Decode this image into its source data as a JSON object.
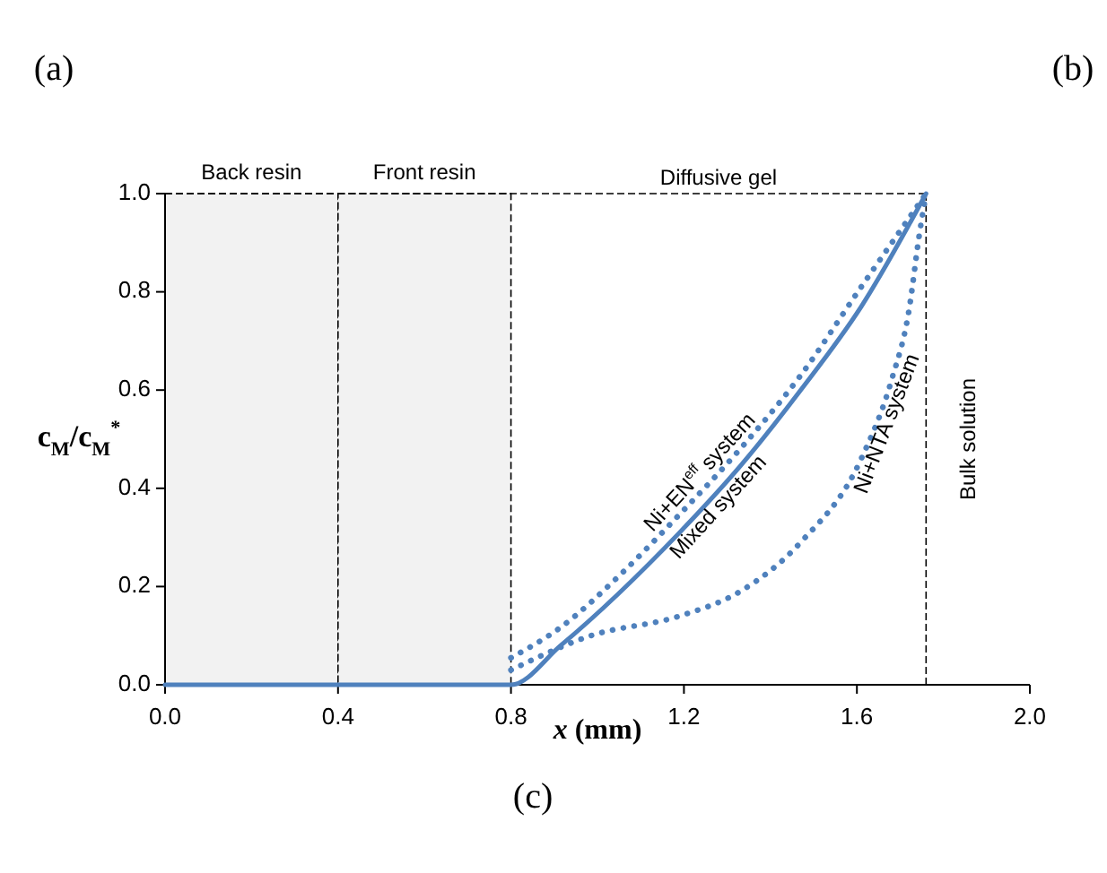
{
  "chart_data": {
    "type": "line",
    "xlabel": "x (mm)",
    "ylabel": "c$_{M}$/c$_{M}$$^{*}$",
    "xlim": [
      0,
      2
    ],
    "xticks": [
      {
        "value": 0,
        "label": "0.0"
      },
      0.4,
      0.8,
      1.2,
      1.6,
      {
        "value": 2,
        "label": "2.0"
      }
    ],
    "ylim": [
      0,
      1
    ],
    "yticks": [
      {
        "value": 0,
        "label": "0.0"
      },
      0.2,
      0.4,
      0.6,
      0.8,
      {
        "value": 1,
        "label": "1.0"
      }
    ],
    "grid": false,
    "legend": false,
    "marker": "none",
    "series": [
      {
        "name": "Ni+EN$^{eff}$ system",
        "color": "#4f81bd",
        "line_style": "dotted",
        "x": [
          0.8,
          0.915,
          1.055,
          1.19,
          1.33,
          1.47,
          1.61,
          1.76
        ],
        "values": [
          0.055,
          0.117,
          0.226,
          0.347,
          0.48,
          0.63,
          0.81,
          1.0
        ]
      },
      {
        "name": "Mixed system",
        "color": "#4f81bd",
        "line_style": "solid",
        "x": [
          0,
          0.8,
          0.915,
          1.19,
          1.33,
          1.47,
          1.61,
          1.76
        ],
        "values": [
          0,
          0,
          0.08,
          0.31,
          0.445,
          0.6,
          0.77,
          1.0
        ]
      },
      {
        "name": "Ni+NTA system",
        "color": "#4f81bd",
        "line_style": "dotted",
        "x": [
          0.8,
          0.985,
          1.19,
          1.33,
          1.47,
          1.61,
          1.68,
          1.72,
          1.745,
          1.76
        ],
        "values": [
          0.03,
          0.1,
          0.14,
          0.19,
          0.29,
          0.46,
          0.62,
          0.76,
          0.92,
          1.0
        ]
      }
    ],
    "bands": [
      {
        "axis": "x",
        "from": 0,
        "to": 0.4,
        "label": "Back resin",
        "color": "#f2f2f2"
      },
      {
        "axis": "x",
        "from": 0.4,
        "to": 0.8,
        "label": "Front resin",
        "color": "#f2f2f2"
      }
    ],
    "ref_lines": [
      {
        "axis": "x",
        "value": 1.76,
        "line_style": "dashed"
      },
      {
        "axis": "y",
        "value": 1,
        "line_style": "dashed"
      }
    ],
    "annotations": [
      "(a)",
      "(b)",
      "(c)",
      "Diffusive gel",
      "Bulk solution"
    ]
  }
}
